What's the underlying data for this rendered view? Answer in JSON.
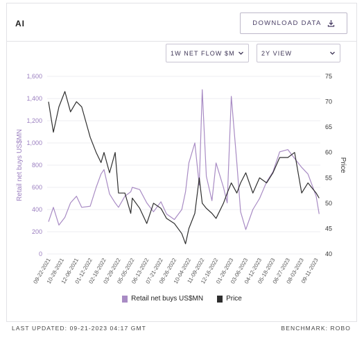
{
  "header": {
    "ticker": "AI",
    "download_label": "DOWNLOAD DATA",
    "download_icon": "download-icon"
  },
  "controls": {
    "flow_select": "1W NET FLOW $M",
    "view_select": "2Y VIEW"
  },
  "footer": {
    "last_updated": "LAST UPDATED: 09-21-2023 04:17 GMT",
    "benchmark": "BENCHMARK: ROBO"
  },
  "colors": {
    "retail": "#a88bc4",
    "price": "#2e2e2e",
    "axis_left": "#9b7fc0"
  },
  "chart_data": {
    "type": "line",
    "xlabel": "",
    "ylabel_left": "Retail net buys US$MN",
    "ylabel_right": "Price",
    "ylim_left": [
      0,
      1600
    ],
    "ylim_right": [
      40,
      75
    ],
    "yticks_left": [
      "0",
      "200",
      "400",
      "600",
      "800",
      "1,000",
      "1,200",
      "1,400",
      "1,600"
    ],
    "yticks_right": [
      "40",
      "45",
      "50",
      "55",
      "60",
      "65",
      "70",
      "75"
    ],
    "x_tick_labels": [
      "09-22-2021",
      "10-28-2021",
      "12-06-2021",
      "01-12-2022",
      "02-18-2022",
      "03-29-2022",
      "05-05-2022",
      "06-13-2022",
      "07-21-2022",
      "08-26-2022",
      "10-04-2022",
      "11-09-2022",
      "12-16-2022",
      "01-26-2023",
      "03-06-2023",
      "04-12-2023",
      "05-18-2023",
      "06-27-2023",
      "08-03-2023",
      "09-11-2023"
    ],
    "grid": "horizontal",
    "legend": "bottom-center",
    "series": [
      {
        "name": "Retail net buys US$MN",
        "axis": "left",
        "x": [
          "09-22-2021",
          "10-05-2021",
          "10-20-2021",
          "11-05-2021",
          "11-20-2021",
          "12-06-2021",
          "12-20-2021",
          "01-12-2022",
          "01-28-2022",
          "02-10-2022",
          "02-18-2022",
          "03-05-2022",
          "03-20-2022",
          "03-29-2022",
          "04-15-2022",
          "05-01-2022",
          "05-05-2022",
          "05-25-2022",
          "06-13-2022",
          "07-01-2022",
          "07-21-2022",
          "08-05-2022",
          "08-26-2022",
          "09-15-2022",
          "09-25-2022",
          "10-04-2022",
          "10-20-2022",
          "11-01-2022",
          "11-09-2022",
          "11-20-2022",
          "12-05-2022",
          "12-16-2022",
          "01-05-2023",
          "01-15-2023",
          "01-26-2023",
          "02-10-2023",
          "02-20-2023",
          "03-06-2023",
          "03-25-2023",
          "04-12-2023",
          "05-01-2023",
          "05-18-2023",
          "06-05-2023",
          "06-27-2023",
          "07-15-2023",
          "08-03-2023",
          "08-20-2023",
          "09-11-2023",
          "09-19-2023"
        ],
        "y": [
          290,
          420,
          260,
          330,
          460,
          520,
          420,
          430,
          600,
          720,
          760,
          540,
          460,
          420,
          520,
          560,
          600,
          580,
          460,
          380,
          470,
          360,
          310,
          400,
          560,
          820,
          1000,
          620,
          1480,
          700,
          480,
          820,
          600,
          460,
          1420,
          820,
          380,
          220,
          400,
          500,
          650,
          740,
          920,
          940,
          860,
          780,
          720,
          520,
          360
        ]
      },
      {
        "name": "Price",
        "axis": "right",
        "x": [
          "09-22-2021",
          "10-05-2021",
          "10-20-2021",
          "11-05-2021",
          "11-20-2021",
          "12-06-2021",
          "12-20-2021",
          "01-12-2022",
          "01-28-2022",
          "02-10-2022",
          "02-18-2022",
          "03-05-2022",
          "03-20-2022",
          "03-29-2022",
          "04-15-2022",
          "05-01-2022",
          "05-05-2022",
          "05-25-2022",
          "06-13-2022",
          "07-01-2022",
          "07-21-2022",
          "08-05-2022",
          "08-26-2022",
          "09-15-2022",
          "09-25-2022",
          "10-04-2022",
          "10-20-2022",
          "11-01-2022",
          "11-09-2022",
          "11-20-2022",
          "12-05-2022",
          "12-16-2022",
          "01-05-2023",
          "01-15-2023",
          "01-26-2023",
          "02-10-2023",
          "02-20-2023",
          "03-06-2023",
          "03-25-2023",
          "04-12-2023",
          "05-01-2023",
          "05-18-2023",
          "06-05-2023",
          "06-27-2023",
          "07-15-2023",
          "08-03-2023",
          "08-20-2023",
          "09-11-2023",
          "09-19-2023"
        ],
        "y": [
          70,
          64,
          69,
          72,
          68,
          70,
          69,
          63,
          60,
          58,
          60,
          56,
          60,
          52,
          52,
          48,
          51,
          49,
          46,
          50,
          49,
          47,
          46,
          44,
          42,
          45,
          48,
          55,
          50,
          49,
          48,
          47,
          50,
          52,
          54,
          52,
          54,
          56,
          52,
          55,
          54,
          56,
          59,
          59,
          60,
          52,
          54,
          52,
          51
        ]
      }
    ]
  }
}
